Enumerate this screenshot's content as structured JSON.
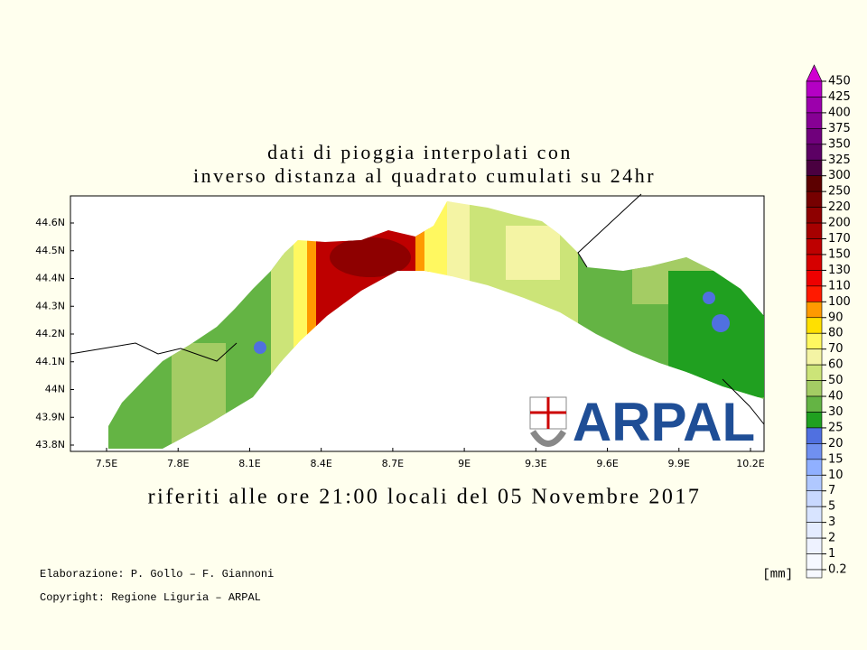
{
  "title": [
    "dati di pioggia interpolati con",
    "inverso distanza al quadrato cumulati su 24hr"
  ],
  "subtitle": "riferiti alle ore 21:00 locali del 05 Novembre 2017",
  "map": {
    "lon_labels": [
      "7.5E",
      "7.8E",
      "8.1E",
      "8.4E",
      "8.7E",
      "9E",
      "9.3E",
      "9.6E",
      "9.9E",
      "10.2E"
    ],
    "lat_labels": [
      "44.6N",
      "44.5N",
      "44.4N",
      "44.3N",
      "44.2N",
      "44.1N",
      "44N",
      "43.9N",
      "43.8N"
    ],
    "logo": "ARPAL"
  },
  "colorbar": {
    "unit": "[mm]",
    "levels": [
      {
        "label": "450",
        "color": "#d000d0"
      },
      {
        "label": "425",
        "color": "#b400c4"
      },
      {
        "label": "400",
        "color": "#9c00ac"
      },
      {
        "label": "375",
        "color": "#860094"
      },
      {
        "label": "350",
        "color": "#70007c"
      },
      {
        "label": "325",
        "color": "#5c0064"
      },
      {
        "label": "300",
        "color": "#4a0040"
      },
      {
        "label": "250",
        "color": "#5c0000"
      },
      {
        "label": "220",
        "color": "#760000"
      },
      {
        "label": "200",
        "color": "#8e0000"
      },
      {
        "label": "170",
        "color": "#a60000"
      },
      {
        "label": "150",
        "color": "#be0000"
      },
      {
        "label": "130",
        "color": "#d60000"
      },
      {
        "label": "110",
        "color": "#ee0000"
      },
      {
        "label": "100",
        "color": "#ff1a00"
      },
      {
        "label": "90",
        "color": "#ff9a00"
      },
      {
        "label": "80",
        "color": "#ffe000"
      },
      {
        "label": "70",
        "color": "#fff860"
      },
      {
        "label": "60",
        "color": "#f4f4a4"
      },
      {
        "label": "50",
        "color": "#cce478"
      },
      {
        "label": "40",
        "color": "#a4cc64"
      },
      {
        "label": "30",
        "color": "#64b444"
      },
      {
        "label": "25",
        "color": "#20a020"
      },
      {
        "label": "20",
        "color": "#5070e0"
      },
      {
        "label": "15",
        "color": "#7090f0"
      },
      {
        "label": "10",
        "color": "#90b0ff"
      },
      {
        "label": "7",
        "color": "#b0c8ff"
      },
      {
        "label": "5",
        "color": "#c8d8ff"
      },
      {
        "label": "3",
        "color": "#d8e4ff"
      },
      {
        "label": "2",
        "color": "#e4ecff"
      },
      {
        "label": "1",
        "color": "#eef2ff"
      },
      {
        "label": "0.2",
        "color": "#f6f8ff"
      }
    ]
  },
  "credits": [
    "Elaborazione: P. Gollo – F. Giannoni",
    "Copyright: Regione Liguria – ARPAL"
  ]
}
